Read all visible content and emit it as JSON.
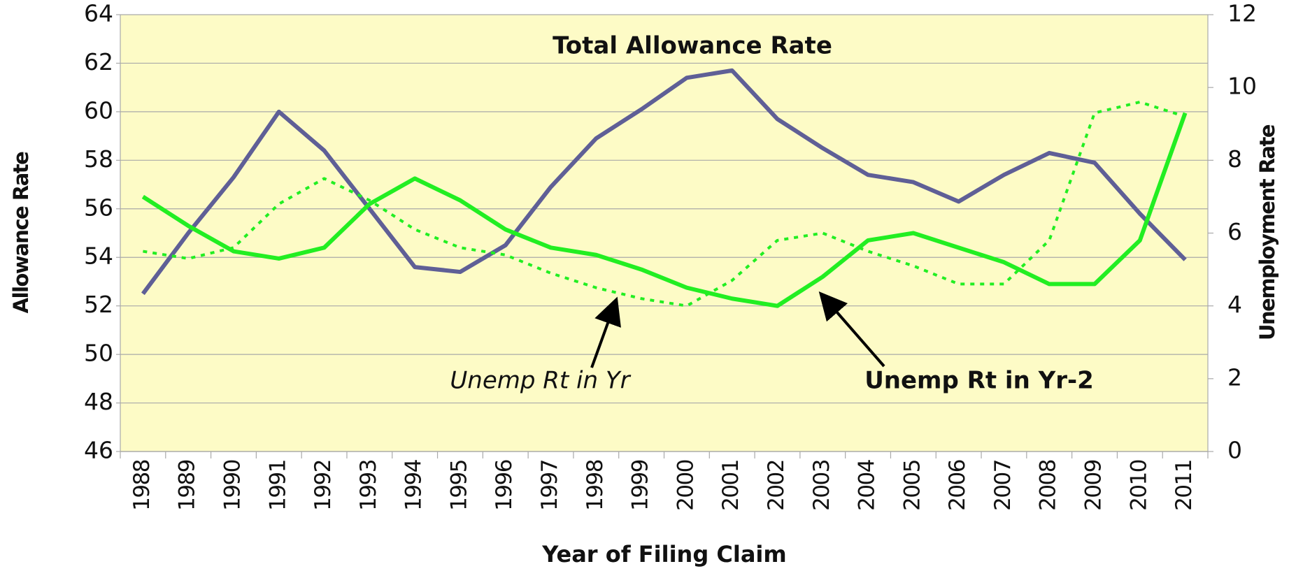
{
  "chart_data": {
    "type": "line",
    "categories": [
      "1988",
      "1989",
      "1990",
      "1991",
      "1992",
      "1993",
      "1994",
      "1995",
      "1996",
      "1997",
      "1998",
      "1999",
      "2000",
      "2001",
      "2002",
      "2003",
      "2004",
      "2005",
      "2006",
      "2007",
      "2008",
      "2009",
      "2010",
      "2011"
    ],
    "series": [
      {
        "name": "Total Allowance Rate",
        "color": "#5f5f96",
        "line_style": "solid",
        "values": [
          52.5,
          55.0,
          57.3,
          60.0,
          58.4,
          56.0,
          53.6,
          53.4,
          54.5,
          56.9,
          58.9,
          60.1,
          61.4,
          61.7,
          59.7,
          58.5,
          57.4,
          57.1,
          56.3,
          57.4,
          58.3,
          57.9,
          55.8,
          53.9
        ]
      },
      {
        "name": "Unemp Rt in Yr",
        "color": "#22ee22",
        "line_style": "dotted",
        "axis": "y2",
        "values": [
          5.5,
          5.3,
          5.6,
          6.8,
          7.5,
          6.9,
          6.1,
          5.6,
          5.4,
          4.9,
          4.5,
          4.2,
          4.0,
          4.7,
          5.8,
          6.0,
          5.5,
          5.1,
          4.6,
          4.6,
          5.8,
          9.3,
          9.6,
          9.2
        ]
      },
      {
        "name": "Unemp Rt in Yr-2",
        "color": "#22ee22",
        "line_style": "solid",
        "axis": "y2",
        "values": [
          7.0,
          6.2,
          5.5,
          5.3,
          5.6,
          6.8,
          7.5,
          6.9,
          6.1,
          5.6,
          5.4,
          5.0,
          4.5,
          4.2,
          4.0,
          4.8,
          5.8,
          6.0,
          5.6,
          5.2,
          4.6,
          4.6,
          5.8,
          9.3
        ]
      }
    ],
    "y_label": "Allowance Rate",
    "y2_label": "Unemployment Rate",
    "x_label": "Year of Filing Claim",
    "ylim": [
      46,
      64
    ],
    "yticks": [
      46,
      48,
      50,
      52,
      54,
      56,
      58,
      60,
      62,
      64
    ],
    "y2lim": [
      0,
      12
    ],
    "y2ticks": [
      0,
      2,
      4,
      6,
      8,
      10,
      12
    ],
    "grid": true,
    "plot_background": "#fdfbc6"
  }
}
